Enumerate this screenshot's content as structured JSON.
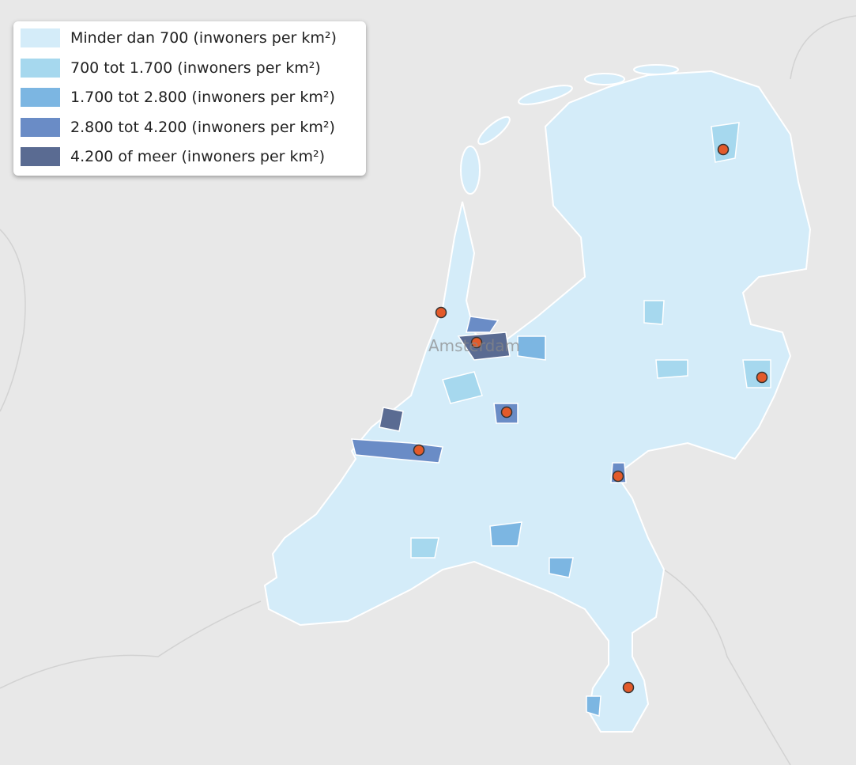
{
  "legend": {
    "items": [
      {
        "label": "Minder dan 700 (inwoners per km²)",
        "color": "#d4ecf9"
      },
      {
        "label": "700 tot 1.700 (inwoners per km²)",
        "color": "#a6d8ee"
      },
      {
        "label": "1.700 tot 2.800 (inwoners per km²)",
        "color": "#7cb6e2"
      },
      {
        "label": "2.800 tot 4.200 (inwoners per km²)",
        "color": "#6a8cc6"
      },
      {
        "label": "4.200 of meer (inwoners per km²)",
        "color": "#5a6b92"
      }
    ]
  },
  "map": {
    "labels": [
      "Amsterdam"
    ]
  }
}
